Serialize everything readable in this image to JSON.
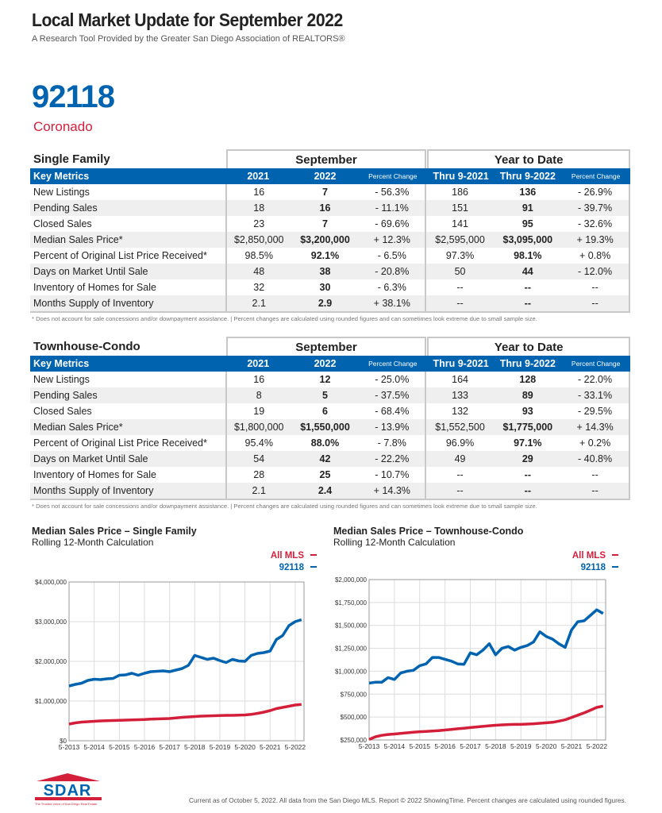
{
  "header": {
    "title": "Local Market Update for September 2022",
    "subtitle": "A Research Tool Provided by the Greater San Diego Association of REALTORS®",
    "zip": "92118",
    "city": "Coronado"
  },
  "columns": {
    "key": "Key Metrics",
    "september": "September",
    "ytd": "Year to Date",
    "c1": "2021",
    "c2": "2022",
    "pc": "Percent Change",
    "c4": "Thru 9-2021",
    "c5": "Thru 9-2022"
  },
  "tables": [
    {
      "title": "Single Family",
      "rows": [
        [
          "New Listings",
          "16",
          "7",
          "- 56.3%",
          "186",
          "136",
          "- 26.9%"
        ],
        [
          "Pending Sales",
          "18",
          "16",
          "- 11.1%",
          "151",
          "91",
          "- 39.7%"
        ],
        [
          "Closed Sales",
          "23",
          "7",
          "- 69.6%",
          "141",
          "95",
          "- 32.6%"
        ],
        [
          "Median Sales Price*",
          "$2,850,000",
          "$3,200,000",
          "+ 12.3%",
          "$2,595,000",
          "$3,095,000",
          "+ 19.3%"
        ],
        [
          "Percent of Original List Price Received*",
          "98.5%",
          "92.1%",
          "- 6.5%",
          "97.3%",
          "98.1%",
          "+ 0.8%"
        ],
        [
          "Days on Market Until Sale",
          "48",
          "38",
          "- 20.8%",
          "50",
          "44",
          "- 12.0%"
        ],
        [
          "Inventory of Homes for Sale",
          "32",
          "30",
          "- 6.3%",
          "--",
          "--",
          "--"
        ],
        [
          "Months Supply of Inventory",
          "2.1",
          "2.9",
          "+ 38.1%",
          "--",
          "--",
          "--"
        ]
      ]
    },
    {
      "title": "Townhouse-Condo",
      "rows": [
        [
          "New Listings",
          "16",
          "12",
          "- 25.0%",
          "164",
          "128",
          "- 22.0%"
        ],
        [
          "Pending Sales",
          "8",
          "5",
          "- 37.5%",
          "133",
          "89",
          "- 33.1%"
        ],
        [
          "Closed Sales",
          "19",
          "6",
          "- 68.4%",
          "132",
          "93",
          "- 29.5%"
        ],
        [
          "Median Sales Price*",
          "$1,800,000",
          "$1,550,000",
          "- 13.9%",
          "$1,552,500",
          "$1,775,000",
          "+ 14.3%"
        ],
        [
          "Percent of Original List Price Received*",
          "95.4%",
          "88.0%",
          "- 7.8%",
          "96.9%",
          "97.1%",
          "+ 0.2%"
        ],
        [
          "Days on Market Until Sale",
          "54",
          "42",
          "- 22.2%",
          "49",
          "29",
          "- 40.8%"
        ],
        [
          "Inventory of Homes for Sale",
          "28",
          "25",
          "- 10.7%",
          "--",
          "--",
          "--"
        ],
        [
          "Months Supply of Inventory",
          "2.1",
          "2.4",
          "+ 14.3%",
          "--",
          "--",
          "--"
        ]
      ]
    }
  ],
  "note": "* Does not account for sale concessions and/or downpayment assistance.  |  Percent changes are calculated using rounded figures and can sometimes look extreme due to small sample size.",
  "colors": {
    "blue": "#0063b0",
    "red": "#d41f3a"
  },
  "chart_data": [
    {
      "type": "line",
      "title": "Median Sales Price – Single Family",
      "subtitle": "Rolling 12-Month Calculation",
      "ylim": [
        0,
        4000000
      ],
      "yticks": [
        "$0",
        "$1,000,000",
        "$2,000,000",
        "$3,000,000",
        "$4,000,000"
      ],
      "xticks": [
        "5-2013",
        "5-2014",
        "5-2015",
        "5-2016",
        "5-2017",
        "5-2018",
        "5-2019",
        "5-2020",
        "5-2021",
        "5-2022"
      ],
      "grid": true,
      "legend": "top-right",
      "series": [
        {
          "name": "All MLS",
          "color": "#d41f3a",
          "values": [
            420000,
            450000,
            470000,
            480000,
            490000,
            500000,
            505000,
            510000,
            515000,
            520000,
            525000,
            530000,
            535000,
            545000,
            550000,
            555000,
            560000,
            575000,
            590000,
            600000,
            610000,
            620000,
            625000,
            630000,
            635000,
            640000,
            640000,
            645000,
            650000,
            665000,
            690000,
            720000,
            760000,
            810000,
            840000,
            870000,
            900000,
            915000
          ]
        },
        {
          "name": "92118",
          "color": "#0063b0",
          "values": [
            1380000,
            1420000,
            1450000,
            1520000,
            1550000,
            1540000,
            1560000,
            1570000,
            1650000,
            1660000,
            1700000,
            1650000,
            1700000,
            1740000,
            1750000,
            1760000,
            1740000,
            1780000,
            1820000,
            1900000,
            2150000,
            2100000,
            2050000,
            2080000,
            2020000,
            1970000,
            2050000,
            2010000,
            2000000,
            2150000,
            2200000,
            2220000,
            2260000,
            2550000,
            2650000,
            2900000,
            3000000,
            3050000
          ]
        }
      ]
    },
    {
      "type": "line",
      "title": "Median Sales Price – Townhouse-Condo",
      "subtitle": "Rolling 12-Month Calculation",
      "ylim": [
        250000,
        2000000
      ],
      "yticks": [
        "$250,000",
        "$500,000",
        "$750,000",
        "$1,000,000",
        "$1,250,000",
        "$1,500,000",
        "$1,750,000",
        "$2,000,000"
      ],
      "xticks": [
        "5-2013",
        "5-2014",
        "5-2015",
        "5-2016",
        "5-2017",
        "5-2018",
        "5-2019",
        "5-2020",
        "5-2021",
        "5-2022"
      ],
      "grid": true,
      "legend": "top-right",
      "series": [
        {
          "name": "All MLS",
          "color": "#d41f3a",
          "values": [
            255000,
            285000,
            300000,
            310000,
            315000,
            322000,
            328000,
            335000,
            340000,
            343000,
            348000,
            352000,
            358000,
            365000,
            372000,
            378000,
            385000,
            392000,
            398000,
            405000,
            410000,
            415000,
            418000,
            420000,
            420000,
            423000,
            427000,
            432000,
            437000,
            442000,
            455000,
            470000,
            495000,
            520000,
            545000,
            575000,
            605000,
            620000
          ]
        },
        {
          "name": "92118",
          "color": "#0063b0",
          "values": [
            870000,
            880000,
            880000,
            930000,
            910000,
            980000,
            1000000,
            1010000,
            1060000,
            1080000,
            1150000,
            1150000,
            1130000,
            1110000,
            1080000,
            1075000,
            1200000,
            1180000,
            1230000,
            1300000,
            1180000,
            1250000,
            1270000,
            1230000,
            1260000,
            1280000,
            1320000,
            1430000,
            1380000,
            1350000,
            1300000,
            1260000,
            1450000,
            1540000,
            1550000,
            1610000,
            1670000,
            1630000
          ]
        }
      ]
    }
  ],
  "logo": {
    "text": "SDAR",
    "tagline": "The Trusted Voice of San Diego Real Estate"
  },
  "footer": "Current as of October 5, 2022. All data from the San Diego MLS. Report © 2022 ShowingTime. Percent changes are calculated using rounded figures."
}
